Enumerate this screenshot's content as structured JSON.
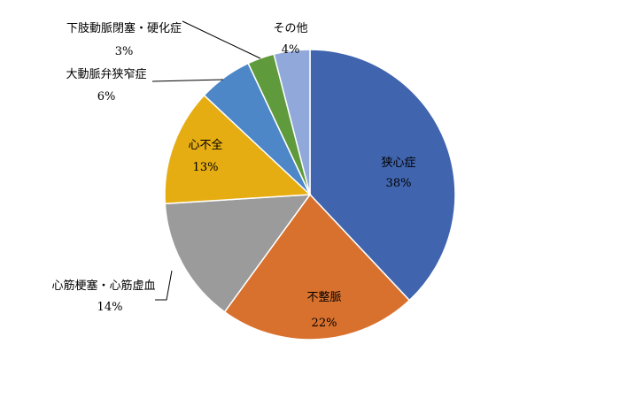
{
  "chart_data": {
    "type": "pie",
    "title": "",
    "start_angle_deg": 0,
    "direction": "clockwise",
    "slices": [
      {
        "label": "狭心症",
        "value": 38,
        "pct_text": "38%",
        "color": "#4064AE"
      },
      {
        "label": "不整脈",
        "value": 22,
        "pct_text": "22%",
        "color": "#D9712E"
      },
      {
        "label": "心筋梗塞・心筋虚血",
        "value": 14,
        "pct_text": "14%",
        "color": "#9B9B9B"
      },
      {
        "label": "心不全",
        "value": 13,
        "pct_text": "13%",
        "color": "#E6AD12"
      },
      {
        "label": "大動脈弁狭窄症",
        "value": 6,
        "pct_text": "6%",
        "color": "#4D87C7"
      },
      {
        "label": "下肢動脈閉塞・硬化症",
        "value": 3,
        "pct_text": "3%",
        "color": "#5F9B3C"
      },
      {
        "label": "その他",
        "value": 4,
        "pct_text": "4%",
        "color": "#91A8DA"
      }
    ]
  }
}
